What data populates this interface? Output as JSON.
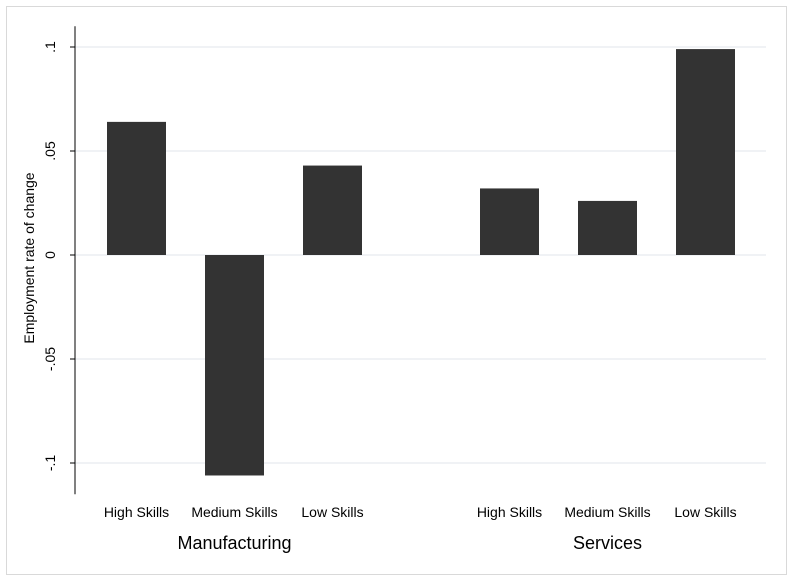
{
  "chart_data": {
    "type": "bar",
    "title": "",
    "ylabel": "Employment rate of change",
    "ylim": [
      -0.115,
      0.11
    ],
    "yticks": [
      {
        "value": 0.1,
        "label": ".1"
      },
      {
        "value": 0.05,
        "label": ".05"
      },
      {
        "value": 0,
        "label": "0"
      },
      {
        "value": -0.05,
        "label": "-.05"
      },
      {
        "value": -0.1,
        "label": "-.1"
      }
    ],
    "grid": true,
    "bar_color": "#333333",
    "groups": [
      {
        "name": "Manufacturing",
        "categories": [
          "High Skills",
          "Medium Skills",
          "Low Skills"
        ],
        "values": [
          0.064,
          -0.106,
          0.043
        ]
      },
      {
        "name": "Services",
        "categories": [
          "High Skills",
          "Medium Skills",
          "Low Skills"
        ],
        "values": [
          0.032,
          0.026,
          0.099
        ]
      }
    ]
  }
}
